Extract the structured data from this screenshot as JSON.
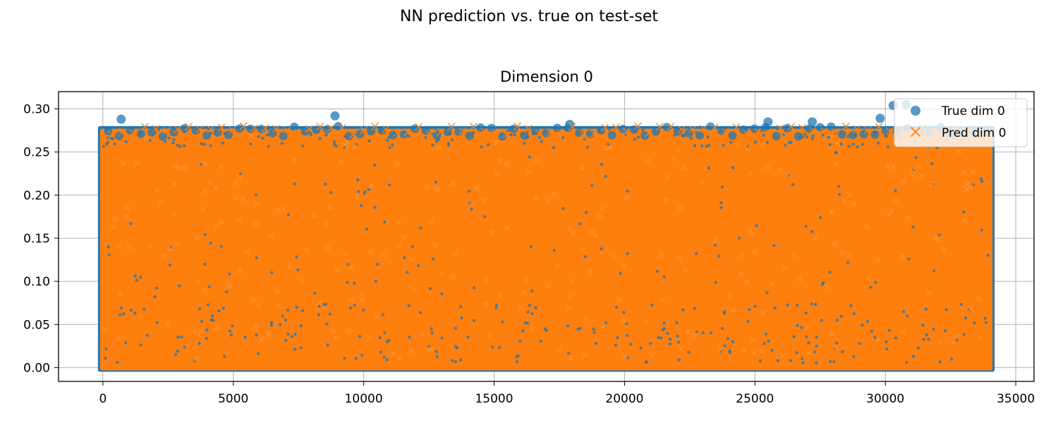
{
  "figure": {
    "suptitle": "NN prediction vs. true on test-set"
  },
  "chart_data": {
    "type": "scatter",
    "title": "Dimension 0",
    "xlabel": "",
    "ylabel": "",
    "xlim": [
      -1700,
      35700
    ],
    "ylim": [
      -0.016,
      0.32
    ],
    "xticks": [
      0,
      5000,
      10000,
      15000,
      20000,
      25000,
      30000,
      35000
    ],
    "xtick_labels": [
      "0",
      "5000",
      "10000",
      "15000",
      "20000",
      "25000",
      "30000",
      "35000"
    ],
    "yticks": [
      0.0,
      0.05,
      0.1,
      0.15,
      0.2,
      0.25,
      0.3
    ],
    "ytick_labels": [
      "0.00",
      "0.05",
      "0.10",
      "0.15",
      "0.20",
      "0.25",
      "0.30"
    ],
    "grid": true,
    "legend_position": "upper right",
    "n_points": 34000,
    "series": [
      {
        "name": "True dim 0",
        "marker": "circle",
        "color": "#1f77b4",
        "x_range": [
          0,
          34000
        ],
        "y_range": [
          0.0,
          0.305
        ],
        "notable_outliers": [
          [
            700,
            0.288
          ],
          [
            8900,
            0.292
          ],
          [
            17900,
            0.282
          ],
          [
            25500,
            0.285
          ],
          [
            27200,
            0.285
          ],
          [
            29800,
            0.289
          ],
          [
            30300,
            0.304
          ],
          [
            30800,
            0.305
          ]
        ]
      },
      {
        "name": "Pred dim 0",
        "marker": "x",
        "color": "#ff7f0e",
        "x_range": [
          0,
          34000
        ],
        "y_range": [
          0.0,
          0.285
        ]
      }
    ]
  }
}
